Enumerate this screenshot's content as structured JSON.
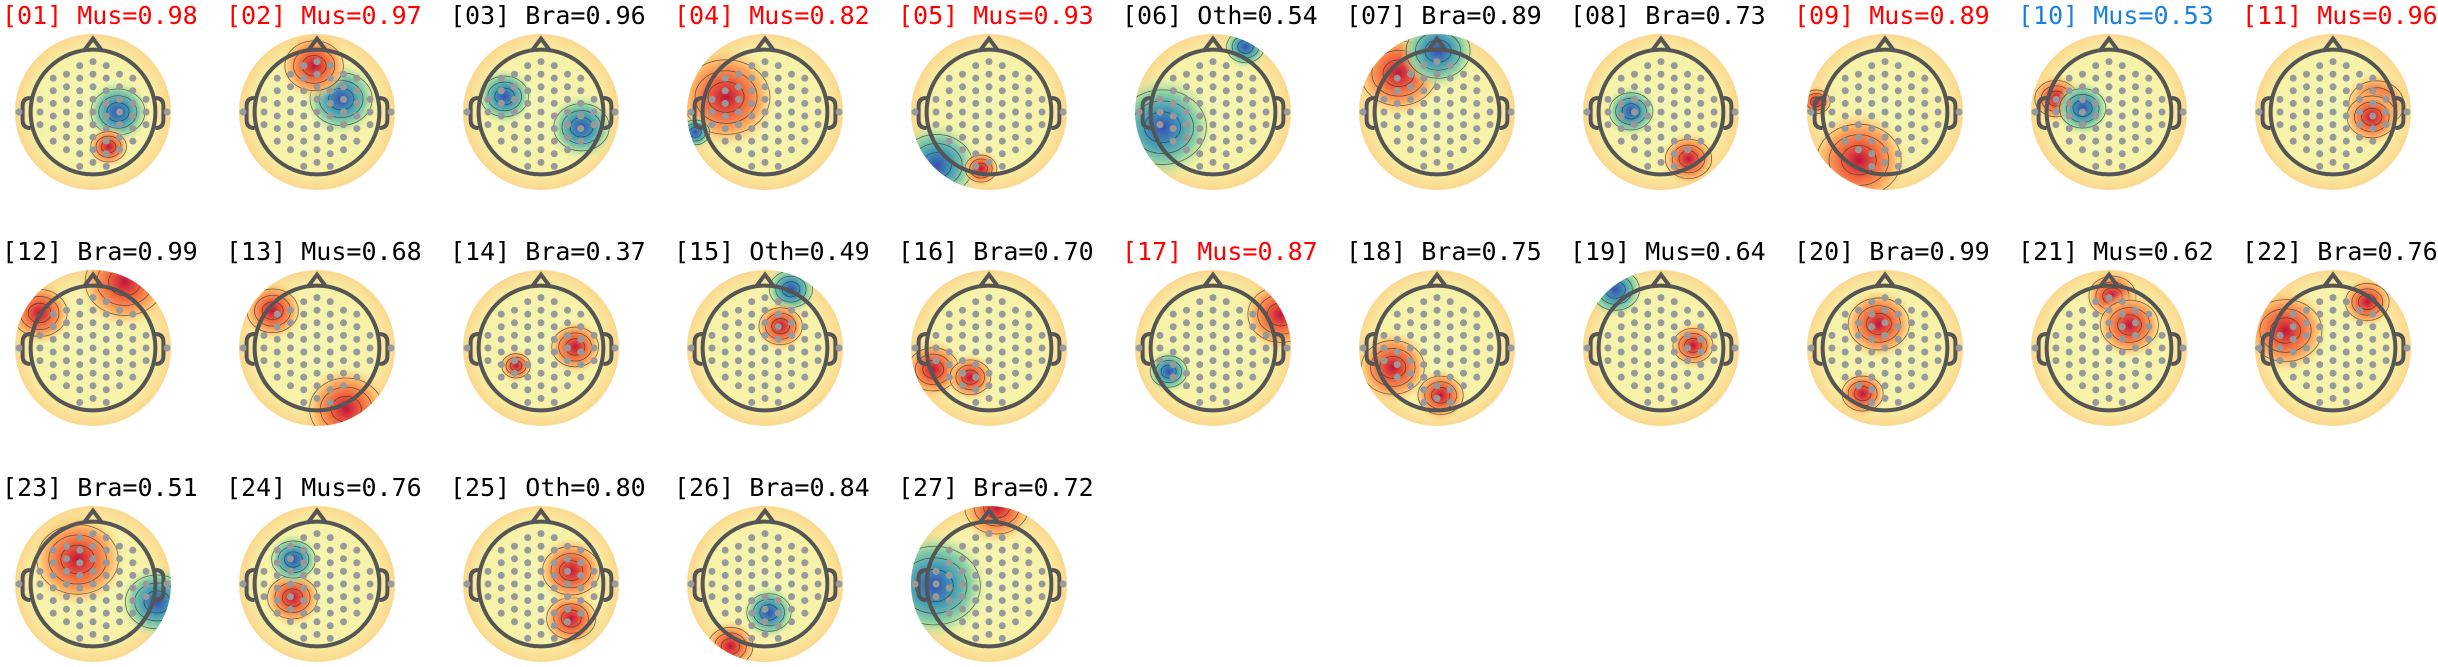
{
  "components": [
    {
      "label": "[01] Mus=0.98",
      "color": "#ff0000"
    },
    {
      "label": "[02] Mus=0.97",
      "color": "#ff0000"
    },
    {
      "label": "[03] Bra=0.96",
      "color": "#000000"
    },
    {
      "label": "[04] Mus=0.82",
      "color": "#ff0000"
    },
    {
      "label": "[05] Mus=0.93",
      "color": "#ff0000"
    },
    {
      "label": "[06] Oth=0.54",
      "color": "#000000"
    },
    {
      "label": "[07] Bra=0.89",
      "color": "#000000"
    },
    {
      "label": "[08] Bra=0.73",
      "color": "#000000"
    },
    {
      "label": "[09] Mus=0.89",
      "color": "#ff0000"
    },
    {
      "label": "[10] Mus=0.53",
      "color": "#1a7fe0"
    },
    {
      "label": "[11] Mus=0.96",
      "color": "#ff0000"
    },
    {
      "label": "[12] Bra=0.99",
      "color": "#000000"
    },
    {
      "label": "[13] Mus=0.68",
      "color": "#000000"
    },
    {
      "label": "[14] Bra=0.37",
      "color": "#000000"
    },
    {
      "label": "[15] Oth=0.49",
      "color": "#000000"
    },
    {
      "label": "[16] Bra=0.70",
      "color": "#000000"
    },
    {
      "label": "[17] Mus=0.87",
      "color": "#ff0000"
    },
    {
      "label": "[18] Bra=0.75",
      "color": "#000000"
    },
    {
      "label": "[19] Mus=0.64",
      "color": "#000000"
    },
    {
      "label": "[20] Bra=0.99",
      "color": "#000000"
    },
    {
      "label": "[21] Mus=0.62",
      "color": "#000000"
    },
    {
      "label": "[22] Bra=0.76",
      "color": "#000000"
    },
    {
      "label": "[23] Bra=0.51",
      "color": "#000000"
    },
    {
      "label": "[24] Mus=0.76",
      "color": "#000000"
    },
    {
      "label": "[25] Oth=0.80",
      "color": "#000000"
    },
    {
      "label": "[26] Bra=0.84",
      "color": "#000000"
    },
    {
      "label": "[27] Bra=0.72",
      "color": "#000000"
    }
  ]
}
